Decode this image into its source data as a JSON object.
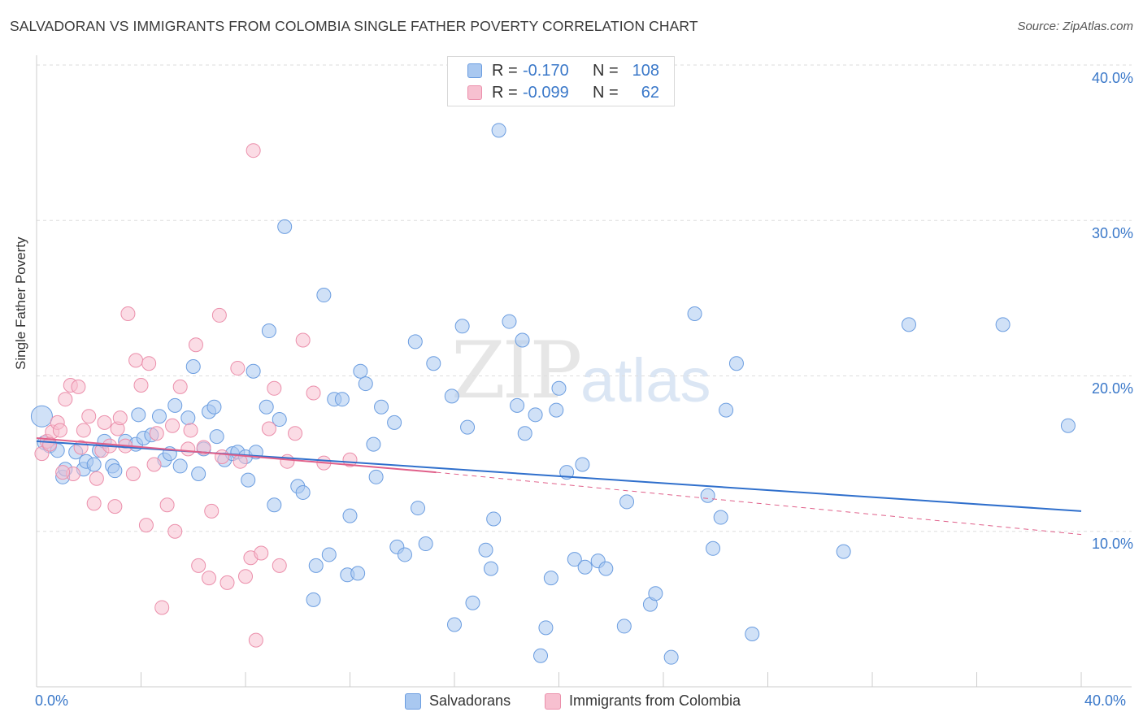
{
  "title": "SALVADORAN VS IMMIGRANTS FROM COLOMBIA SINGLE FATHER POVERTY CORRELATION CHART",
  "source": "Source: ZipAtlas.com",
  "watermark": {
    "zip": "ZIP",
    "atlas": "atlas"
  },
  "legend": {
    "rows": [
      {
        "r_label": "R =",
        "r_value": "-0.170",
        "n_label": "N =",
        "n_value": "108"
      },
      {
        "r_label": "R =",
        "r_value": "-0.099",
        "n_label": "N =",
        "n_value": "62"
      }
    ]
  },
  "colors": {
    "blue_fill": "#a9c8f0",
    "blue_stroke": "#6b9de0",
    "blue_line": "#2f6fcc",
    "pink_fill": "#f7c0d0",
    "pink_stroke": "#eb8fab",
    "pink_line": "#e0608a",
    "grid": "#dddddd",
    "axis_text": "#3a78c9"
  },
  "chart_data": {
    "type": "scatter",
    "title": "SALVADORAN VS IMMIGRANTS FROM COLOMBIA SINGLE FATHER POVERTY CORRELATION CHART",
    "xlabel": "",
    "ylabel": "Single Father Poverty",
    "xlim": [
      0,
      40
    ],
    "ylim": [
      0,
      40
    ],
    "x_tick_labels": [
      "0.0%",
      "40.0%"
    ],
    "y_tick_labels": [
      "10.0%",
      "20.0%",
      "30.0%",
      "40.0%"
    ],
    "y_ticks": [
      10,
      20,
      30,
      40
    ],
    "grid": true,
    "series": [
      {
        "name": "Salvadorans",
        "r": -0.17,
        "n": 108,
        "trend": {
          "x": [
            0,
            40
          ],
          "y": [
            15.8,
            11.3
          ],
          "style": "solid"
        },
        "points": [
          [
            0.2,
            17.4
          ],
          [
            0.3,
            15.7
          ],
          [
            0.5,
            15.5
          ],
          [
            0.8,
            15.2
          ],
          [
            1.0,
            13.5
          ],
          [
            1.1,
            14.0
          ],
          [
            1.5,
            15.1
          ],
          [
            1.8,
            14.0
          ],
          [
            1.9,
            14.5
          ],
          [
            2.2,
            14.3
          ],
          [
            2.4,
            15.2
          ],
          [
            2.6,
            15.8
          ],
          [
            2.9,
            14.2
          ],
          [
            3.0,
            13.9
          ],
          [
            3.4,
            15.8
          ],
          [
            3.8,
            15.6
          ],
          [
            3.9,
            17.5
          ],
          [
            4.1,
            16.0
          ],
          [
            4.4,
            16.2
          ],
          [
            4.7,
            17.4
          ],
          [
            4.9,
            14.6
          ],
          [
            5.1,
            15.0
          ],
          [
            5.3,
            18.1
          ],
          [
            5.5,
            14.2
          ],
          [
            5.8,
            17.3
          ],
          [
            6.0,
            20.6
          ],
          [
            6.2,
            13.7
          ],
          [
            6.4,
            15.3
          ],
          [
            6.6,
            17.7
          ],
          [
            6.8,
            18.0
          ],
          [
            6.9,
            16.1
          ],
          [
            7.2,
            14.6
          ],
          [
            7.5,
            15.0
          ],
          [
            7.7,
            15.1
          ],
          [
            8.0,
            14.8
          ],
          [
            8.1,
            13.3
          ],
          [
            8.3,
            20.3
          ],
          [
            8.4,
            15.1
          ],
          [
            8.8,
            18.0
          ],
          [
            8.9,
            22.9
          ],
          [
            9.1,
            11.7
          ],
          [
            9.3,
            17.2
          ],
          [
            9.5,
            29.6
          ],
          [
            10.0,
            12.9
          ],
          [
            10.2,
            12.5
          ],
          [
            10.6,
            5.6
          ],
          [
            10.7,
            7.8
          ],
          [
            11.0,
            25.2
          ],
          [
            11.2,
            8.5
          ],
          [
            11.4,
            18.5
          ],
          [
            11.7,
            18.5
          ],
          [
            11.9,
            7.2
          ],
          [
            12.0,
            11.0
          ],
          [
            12.3,
            7.3
          ],
          [
            12.4,
            20.3
          ],
          [
            12.6,
            19.5
          ],
          [
            12.9,
            15.6
          ],
          [
            13.0,
            13.5
          ],
          [
            13.2,
            18.0
          ],
          [
            13.7,
            17.0
          ],
          [
            13.8,
            9.0
          ],
          [
            14.1,
            8.5
          ],
          [
            14.5,
            22.2
          ],
          [
            14.6,
            11.5
          ],
          [
            14.9,
            9.2
          ],
          [
            15.2,
            20.8
          ],
          [
            15.9,
            18.7
          ],
          [
            16.0,
            4.0
          ],
          [
            16.3,
            23.2
          ],
          [
            16.5,
            16.7
          ],
          [
            16.7,
            5.4
          ],
          [
            17.2,
            8.8
          ],
          [
            17.4,
            7.6
          ],
          [
            17.5,
            10.8
          ],
          [
            17.7,
            35.8
          ],
          [
            18.1,
            23.5
          ],
          [
            18.4,
            18.1
          ],
          [
            18.6,
            22.3
          ],
          [
            18.7,
            16.3
          ],
          [
            19.1,
            17.5
          ],
          [
            19.3,
            2.0
          ],
          [
            19.5,
            3.8
          ],
          [
            19.7,
            7.0
          ],
          [
            19.9,
            17.8
          ],
          [
            20.0,
            19.2
          ],
          [
            20.3,
            13.8
          ],
          [
            20.6,
            8.2
          ],
          [
            20.9,
            14.3
          ],
          [
            21.0,
            7.7
          ],
          [
            21.5,
            8.1
          ],
          [
            21.8,
            7.6
          ],
          [
            22.5,
            3.9
          ],
          [
            22.6,
            11.9
          ],
          [
            23.5,
            5.3
          ],
          [
            23.7,
            6.0
          ],
          [
            24.3,
            1.9
          ],
          [
            25.2,
            24.0
          ],
          [
            25.7,
            12.3
          ],
          [
            25.9,
            8.9
          ],
          [
            26.2,
            10.9
          ],
          [
            26.4,
            17.8
          ],
          [
            26.8,
            20.8
          ],
          [
            27.4,
            3.4
          ],
          [
            30.9,
            8.7
          ],
          [
            33.4,
            23.3
          ],
          [
            37.0,
            23.3
          ],
          [
            39.5,
            16.8
          ]
        ]
      },
      {
        "name": "Immigrants from Colombia",
        "r": -0.099,
        "n": 62,
        "trend": {
          "x": [
            0,
            15.3
          ],
          "y": [
            16.0,
            13.8
          ],
          "style": "solid",
          "dashed_extension": {
            "x": [
              15.3,
              40
            ],
            "y": [
              13.8,
              9.8
            ]
          }
        },
        "points": [
          [
            0.2,
            15.0
          ],
          [
            0.4,
            15.8
          ],
          [
            0.6,
            16.4
          ],
          [
            0.8,
            17.0
          ],
          [
            0.9,
            16.5
          ],
          [
            1.1,
            18.5
          ],
          [
            1.3,
            19.4
          ],
          [
            1.4,
            13.7
          ],
          [
            1.6,
            19.3
          ],
          [
            1.7,
            15.4
          ],
          [
            1.8,
            16.5
          ],
          [
            2.0,
            17.4
          ],
          [
            2.2,
            11.8
          ],
          [
            2.5,
            15.2
          ],
          [
            2.6,
            17.0
          ],
          [
            2.8,
            15.5
          ],
          [
            3.0,
            11.6
          ],
          [
            3.1,
            16.6
          ],
          [
            3.2,
            17.3
          ],
          [
            3.4,
            15.5
          ],
          [
            3.5,
            24.0
          ],
          [
            3.7,
            13.7
          ],
          [
            3.8,
            21.0
          ],
          [
            4.0,
            19.4
          ],
          [
            4.2,
            10.4
          ],
          [
            4.3,
            20.8
          ],
          [
            4.5,
            14.3
          ],
          [
            4.6,
            16.3
          ],
          [
            4.8,
            5.1
          ],
          [
            5.0,
            11.7
          ],
          [
            5.2,
            16.8
          ],
          [
            5.3,
            10.0
          ],
          [
            5.5,
            19.3
          ],
          [
            5.8,
            15.3
          ],
          [
            6.1,
            22.0
          ],
          [
            6.2,
            7.8
          ],
          [
            6.4,
            15.4
          ],
          [
            6.6,
            7.0
          ],
          [
            6.7,
            11.3
          ],
          [
            7.0,
            23.9
          ],
          [
            7.3,
            6.7
          ],
          [
            7.7,
            20.5
          ],
          [
            7.8,
            14.5
          ],
          [
            8.0,
            7.1
          ],
          [
            8.2,
            8.3
          ],
          [
            8.3,
            34.5
          ],
          [
            8.6,
            8.6
          ],
          [
            8.9,
            16.6
          ],
          [
            9.1,
            19.2
          ],
          [
            9.3,
            7.8
          ],
          [
            9.6,
            14.5
          ],
          [
            9.9,
            16.3
          ],
          [
            10.2,
            22.3
          ],
          [
            10.6,
            18.9
          ],
          [
            11.0,
            14.4
          ],
          [
            12.0,
            14.6
          ],
          [
            8.4,
            3.0
          ],
          [
            2.3,
            13.4
          ],
          [
            5.9,
            16.5
          ],
          [
            7.1,
            14.8
          ],
          [
            0.5,
            15.6
          ],
          [
            1.0,
            13.8
          ]
        ]
      }
    ]
  },
  "bottom_legend": {
    "series1": "Salvadorans",
    "series2": "Immigrants from Colombia"
  }
}
